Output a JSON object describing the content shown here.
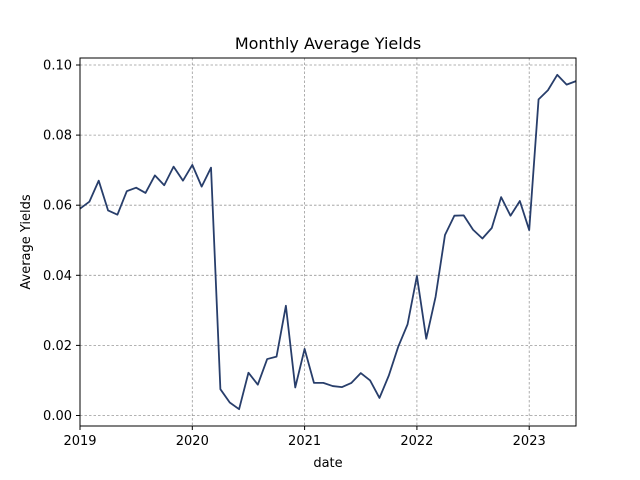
{
  "chart_data": {
    "type": "line",
    "title": "Monthly Average Yields",
    "xlabel": "date",
    "ylabel": "Average Yields",
    "grid": true,
    "line_color": "#283e6b",
    "xlim": [
      "2019-01",
      "2023-06"
    ],
    "ylim": [
      -0.003,
      0.102
    ],
    "xticks": [
      "2019",
      "2020",
      "2021",
      "2022",
      "2023"
    ],
    "yticks": [
      "0.00",
      "0.02",
      "0.04",
      "0.06",
      "0.08",
      "0.10"
    ],
    "x": [
      "2019-01",
      "2019-02",
      "2019-03",
      "2019-04",
      "2019-05",
      "2019-06",
      "2019-07",
      "2019-08",
      "2019-09",
      "2019-10",
      "2019-11",
      "2019-12",
      "2020-01",
      "2020-02",
      "2020-03",
      "2020-04",
      "2020-05",
      "2020-06",
      "2020-07",
      "2020-08",
      "2020-09",
      "2020-10",
      "2020-11",
      "2020-12",
      "2021-01",
      "2021-02",
      "2021-03",
      "2021-04",
      "2021-05",
      "2021-06",
      "2021-07",
      "2021-08",
      "2021-09",
      "2021-10",
      "2021-11",
      "2021-12",
      "2022-01",
      "2022-02",
      "2022-03",
      "2022-04",
      "2022-05",
      "2022-06",
      "2022-07",
      "2022-08",
      "2022-09",
      "2022-10",
      "2022-11",
      "2022-12",
      "2023-01",
      "2023-02",
      "2023-03",
      "2023-04",
      "2023-05",
      "2023-06"
    ],
    "series": [
      {
        "values": [
          0.059,
          0.061,
          0.067,
          0.0585,
          0.0573,
          0.064,
          0.065,
          0.0635,
          0.0685,
          0.0657,
          0.071,
          0.067,
          0.0715,
          0.0653,
          0.0707,
          0.0075,
          0.0037,
          0.0018,
          0.0122,
          0.0088,
          0.0161,
          0.0168,
          0.0313,
          0.008,
          0.019,
          0.0093,
          0.0093,
          0.0084,
          0.0081,
          0.0093,
          0.0121,
          0.01,
          0.005,
          0.0114,
          0.0196,
          0.026,
          0.0398,
          0.0219,
          0.0339,
          0.0515,
          0.057,
          0.0571,
          0.053,
          0.0505,
          0.0535,
          0.0623,
          0.057,
          0.0612,
          0.0529,
          0.0902,
          0.0928,
          0.0972,
          0.0944,
          0.0954
        ]
      }
    ]
  }
}
